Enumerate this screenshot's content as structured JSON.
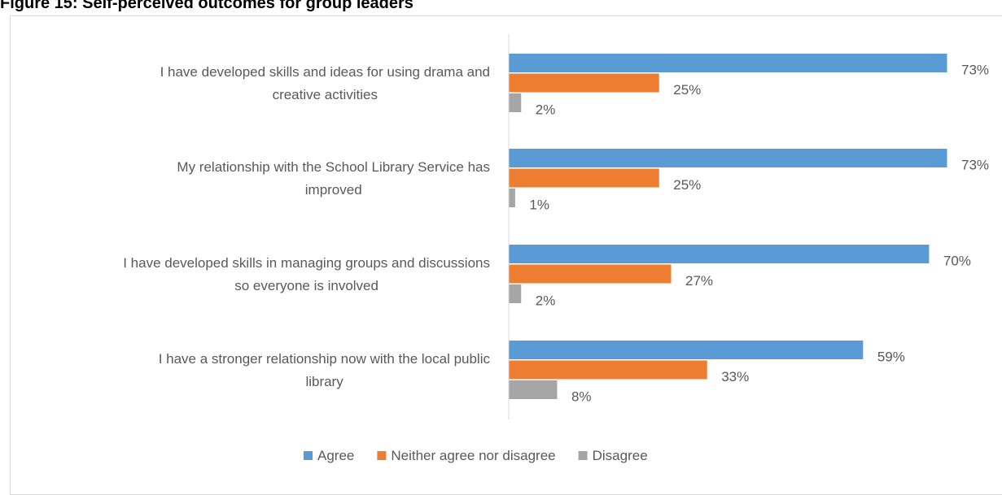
{
  "title": "Figure 15: Self-perceived outcomes for group leaders",
  "chart_data": {
    "type": "bar",
    "orientation": "horizontal",
    "categories": [
      [
        "I have developed skills and ideas for using drama and",
        "creative activities"
      ],
      [
        "My relationship with the School Library Service has",
        "improved"
      ],
      [
        "I have developed skills in managing groups and discussions",
        "so everyone is involved"
      ],
      [
        "I have a stronger relationship now with the local public",
        "library"
      ]
    ],
    "series": [
      {
        "name": "Agree",
        "values": [
          73,
          73,
          70,
          59
        ],
        "color": "#5b9bd5"
      },
      {
        "name": "Neither agree nor disagree",
        "values": [
          25,
          25,
          27,
          33
        ],
        "color": "#ed7d31"
      },
      {
        "name": "Disagree",
        "values": [
          2,
          1,
          2,
          8
        ],
        "color": "#a5a5a5"
      }
    ],
    "value_suffix": "%",
    "xlim": [
      0,
      73
    ],
    "grid": false,
    "legend_position": "bottom",
    "axis_color": "#d9d9d9",
    "label_color": "#595959"
  }
}
